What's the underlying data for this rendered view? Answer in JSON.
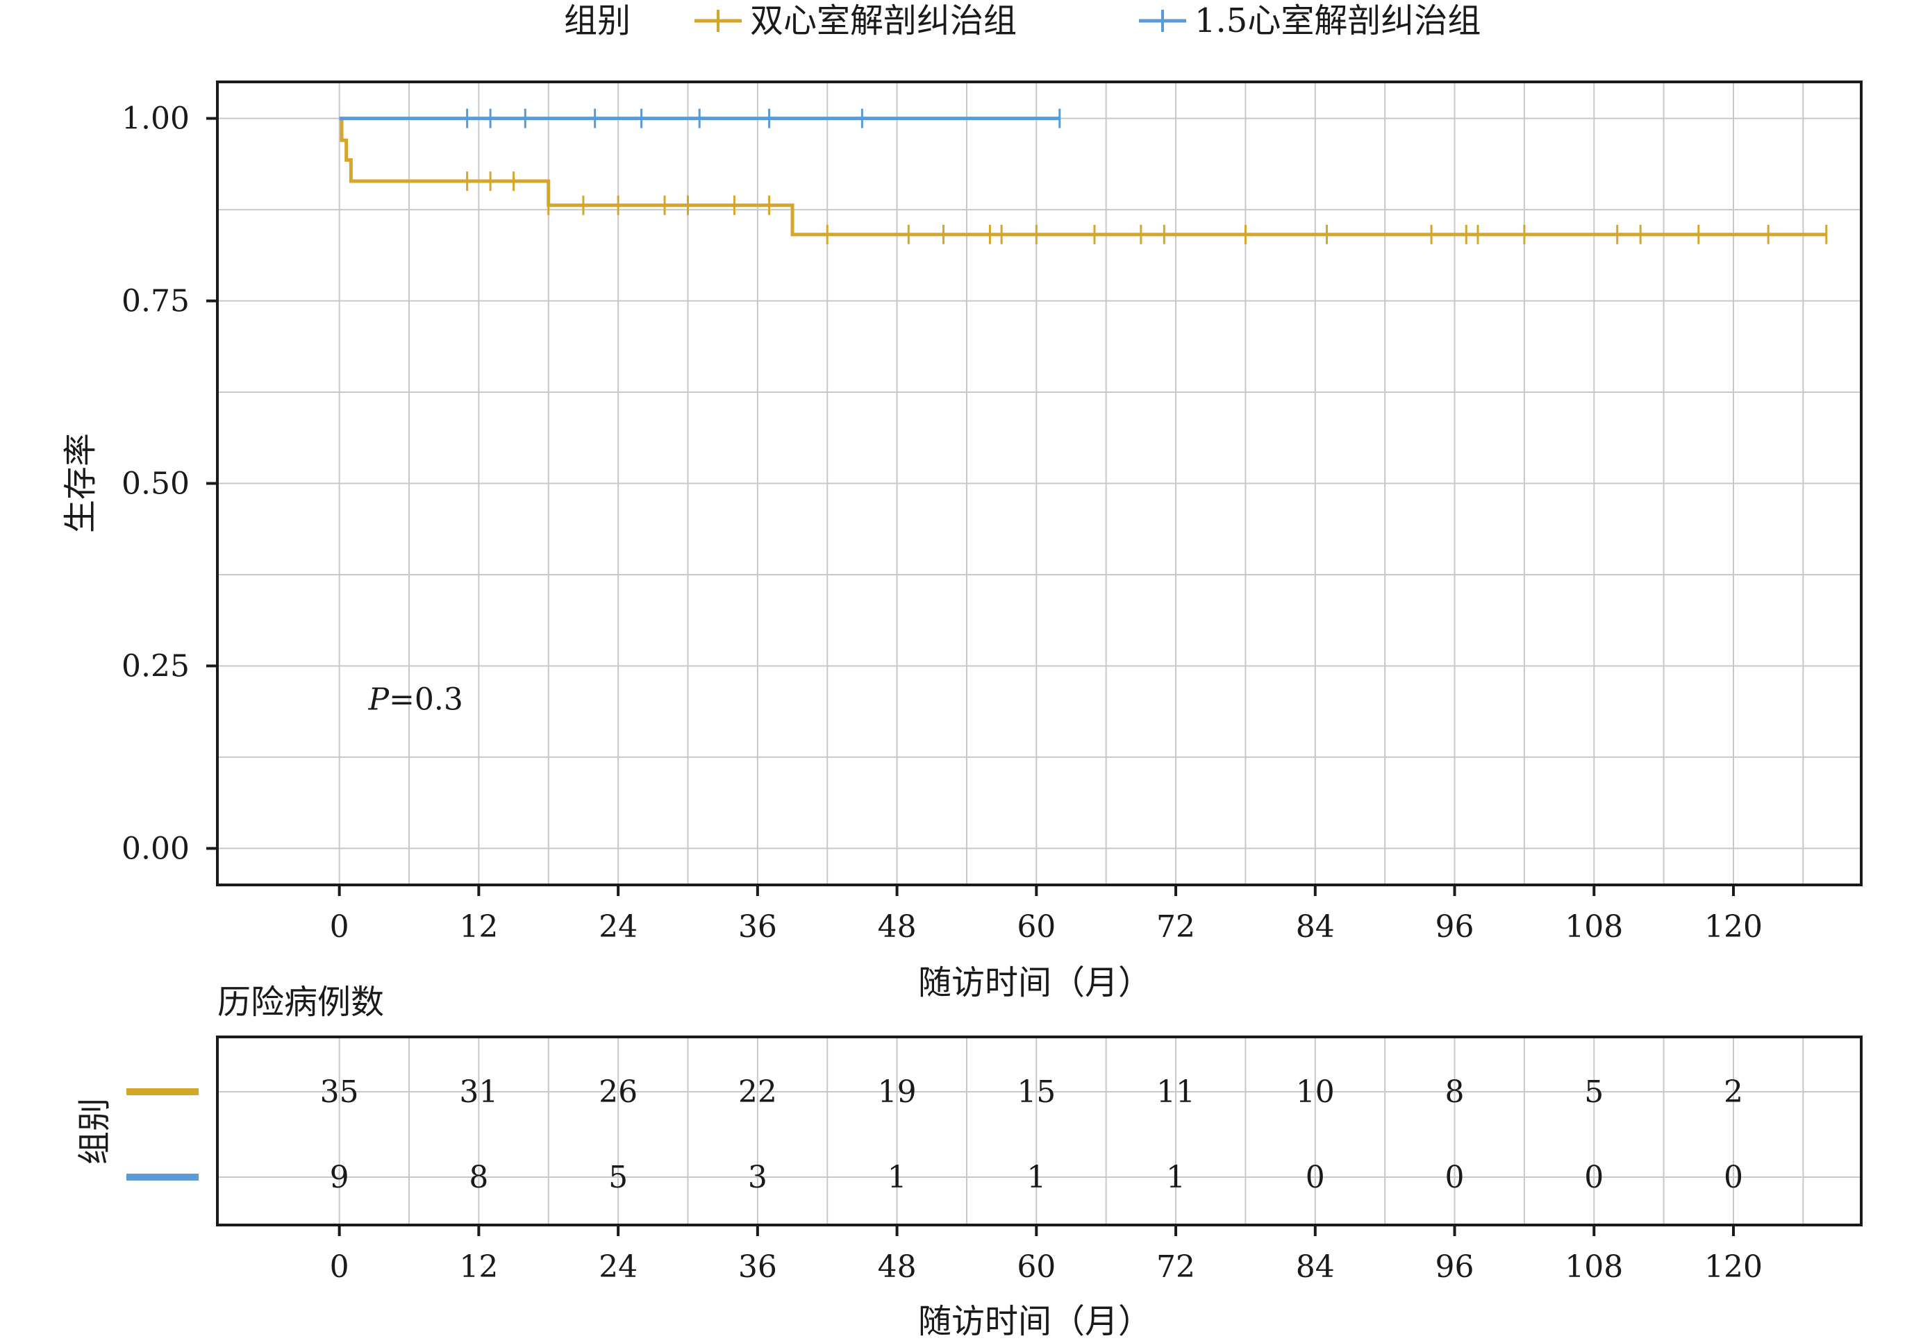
{
  "colors": {
    "double_ventricle": "#D4A62A",
    "one_and_half_ventricle": "#5B9BD5",
    "grid": "#c8c8c8",
    "axis": "#1a1a1a"
  },
  "legend": {
    "title": "组别",
    "items": [
      "双心室解剖纠治组",
      "1.5心室解剖纠治组"
    ]
  },
  "chart_data": {
    "type": "line",
    "subtype": "kaplan-meier-step",
    "xlabel": "随访时间（月）",
    "ylabel": "生存率",
    "xlim": [
      -10.5,
      131
    ],
    "ylim": [
      -0.05,
      1.05
    ],
    "x_ticks": [
      0,
      12,
      24,
      36,
      48,
      60,
      72,
      84,
      96,
      108,
      120
    ],
    "x_tick_labels": [
      "0",
      "12",
      "24",
      "36",
      "48",
      "60",
      "72",
      "84",
      "96",
      "108",
      "120"
    ],
    "y_ticks": [
      0,
      0.25,
      0.5,
      0.75,
      1.0
    ],
    "y_tick_labels": [
      "0.00",
      "0.25",
      "0.50",
      "0.75",
      "1.00"
    ],
    "grid": true,
    "legend_position": "top",
    "annotation": {
      "italic": "P",
      "text": "=0.3",
      "x": 2.5,
      "y": 0.19
    },
    "series": [
      {
        "name": "双心室解剖纠治组",
        "color": "#D4A62A",
        "steps": [
          [
            0,
            1.0
          ],
          [
            0.2,
            0.97
          ],
          [
            0.6,
            0.943
          ],
          [
            1.0,
            0.914
          ],
          [
            18,
            0.881
          ],
          [
            39,
            0.841
          ]
        ],
        "end_x": 128,
        "censor_x": [
          11,
          13,
          15,
          18,
          21,
          24,
          28,
          30,
          34,
          37,
          42,
          49,
          52,
          56,
          57,
          60,
          65,
          69,
          71,
          78,
          85,
          94,
          97,
          98,
          102,
          110,
          112,
          117,
          123,
          128
        ]
      },
      {
        "name": "1.5心室解剖纠治组",
        "color": "#5B9BD5",
        "steps": [
          [
            0,
            1.0
          ]
        ],
        "end_x": 62,
        "censor_x": [
          11,
          13,
          16,
          22,
          26,
          31,
          37,
          45,
          62
        ]
      }
    ],
    "risk_table": {
      "title": "历险病例数",
      "group_axis_label": "组别",
      "xlabel": "随访时间（月）",
      "times": [
        0,
        12,
        24,
        36,
        48,
        60,
        72,
        84,
        96,
        108,
        120
      ],
      "rows": [
        {
          "color": "#D4A62A",
          "values": [
            35,
            31,
            26,
            22,
            19,
            15,
            11,
            10,
            8,
            5,
            2
          ]
        },
        {
          "color": "#5B9BD5",
          "values": [
            9,
            8,
            5,
            3,
            1,
            1,
            1,
            0,
            0,
            0,
            0
          ]
        }
      ]
    }
  }
}
